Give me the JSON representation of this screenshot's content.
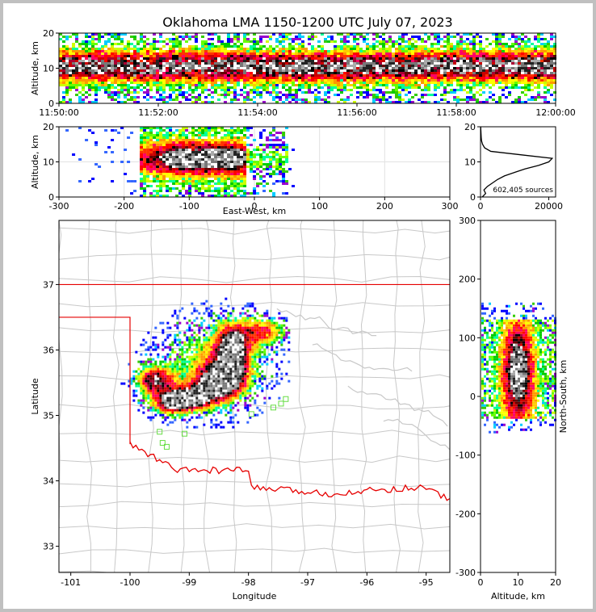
{
  "title": "Oklahoma LMA 1150-1200 UTC July 07, 2023",
  "source_count_label": "602,405 sources",
  "colors": {
    "boundary_state": "#e60000",
    "county_lines": "#c8c8c8",
    "station_marker": "#66dd44"
  },
  "chart_data": [
    {
      "id": "time_height",
      "type": "heatmap",
      "ylabel": "Altitude, km",
      "xlim": [
        "11:50:00",
        "12:00:00"
      ],
      "ylim": [
        0,
        20
      ],
      "xticks": [
        "11:50:00",
        "11:52:00",
        "11:54:00",
        "11:56:00",
        "11:58:00",
        "12:00:00"
      ],
      "yticks": [
        "0",
        "10",
        "20"
      ],
      "core_altitude_km": [
        8,
        13
      ]
    },
    {
      "id": "ew_height",
      "type": "heatmap",
      "xlabel": "East-West, km",
      "ylabel": "Altitude, km",
      "xlim": [
        -300,
        300
      ],
      "ylim": [
        0,
        20
      ],
      "xticks": [
        "-300",
        "-200",
        "-100",
        "0",
        "100",
        "200",
        "300"
      ],
      "yticks": [
        "0",
        "10",
        "20"
      ],
      "grid": true
    },
    {
      "id": "altitude_histogram",
      "type": "line",
      "xlim": [
        0,
        22000
      ],
      "ylim": [
        0,
        20
      ],
      "xticks": [
        "0",
        "20000"
      ],
      "yticks": [
        "0",
        "10",
        "20"
      ],
      "altitude_km": [
        0,
        1,
        2,
        3,
        4,
        5,
        6,
        7,
        8,
        9,
        10,
        11,
        12,
        13,
        14,
        15,
        16,
        17,
        18,
        19,
        20
      ],
      "counts": [
        500,
        1500,
        1000,
        2000,
        3500,
        5000,
        7000,
        10000,
        13000,
        17000,
        20000,
        21000,
        12000,
        3000,
        1200,
        600,
        300,
        200,
        150,
        100,
        50
      ]
    },
    {
      "id": "plan_view",
      "type": "heatmap",
      "xlabel": "Longitude",
      "ylabel": "Latitude",
      "xlim": [
        -101.2,
        -94.6
      ],
      "ylim": [
        32.6,
        37.98
      ],
      "xticks": [
        "-101",
        "-100",
        "-99",
        "-98",
        "-97",
        "-96",
        "-95"
      ],
      "yticks": [
        "33",
        "34",
        "35",
        "36",
        "37"
      ],
      "stations": [
        [
          -99.5,
          34.75
        ],
        [
          -99.45,
          34.58
        ],
        [
          -99.38,
          34.52
        ],
        [
          -99.08,
          34.72
        ],
        [
          -97.95,
          35.02
        ],
        [
          -97.58,
          35.12
        ],
        [
          -97.45,
          35.18
        ],
        [
          -97.37,
          35.25
        ]
      ]
    },
    {
      "id": "ns_height",
      "type": "heatmap",
      "xlabel": "Altitude, km",
      "ylabel": "North-South, km",
      "xlim": [
        0,
        20
      ],
      "ylim": [
        -300,
        300
      ],
      "xticks": [
        "0",
        "10",
        "20"
      ],
      "yticks": [
        "-300",
        "-200",
        "-100",
        "0",
        "100",
        "200",
        "300"
      ]
    }
  ]
}
